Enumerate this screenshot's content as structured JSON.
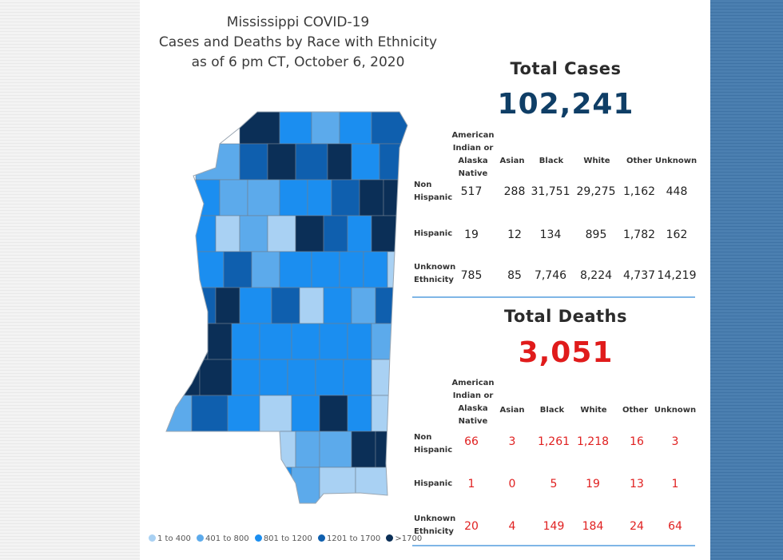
{
  "title": {
    "line1": "Mississippi COVID-19",
    "line2": "Cases and Deaths by Race with Ethnicity",
    "line3": "as of 6 pm CT, October 6, 2020"
  },
  "colors": {
    "c1": "#a9d1f3",
    "c2": "#5caaeb",
    "c3": "#1b8ef0",
    "c4": "#0f5fae",
    "c5": "#0b2f57",
    "border": "#6f7f8f",
    "cases_number": "#0f3e66",
    "deaths_number": "#e01b1b"
  },
  "total_cases": {
    "heading": "Total Cases",
    "value": "102,241"
  },
  "total_deaths": {
    "heading": "Total Deaths",
    "value": "3,051"
  },
  "columns": {
    "american_indian": [
      "American",
      "Indian or",
      "Alaska Native"
    ],
    "others": [
      "Asian",
      "Black",
      "White",
      "Other",
      "Unknown"
    ]
  },
  "cases_rows": [
    {
      "label": [
        "Non",
        "Hispanic"
      ],
      "values": [
        "517",
        "288",
        "31,751",
        "29,275",
        "1,162",
        "448"
      ]
    },
    {
      "label": [
        "Hispanic"
      ],
      "values": [
        "19",
        "12",
        "134",
        "895",
        "1,782",
        "162"
      ]
    },
    {
      "label": [
        "Unknown",
        "Ethnicity"
      ],
      "values": [
        "785",
        "85",
        "7,746",
        "8,224",
        "4,737",
        "14,219"
      ]
    }
  ],
  "deaths_rows": [
    {
      "label": [
        "Non",
        "Hispanic"
      ],
      "values": [
        "66",
        "3",
        "1,261",
        "1,218",
        "16",
        "3"
      ]
    },
    {
      "label": [
        "Hispanic"
      ],
      "values": [
        "1",
        "0",
        "5",
        "19",
        "13",
        "1"
      ]
    },
    {
      "label": [
        "Unknown",
        "Ethnicity"
      ],
      "values": [
        "20",
        "4",
        "149",
        "184",
        "24",
        "64"
      ]
    }
  ],
  "legend": [
    {
      "label": "1 to 400",
      "color": "#a9d1f3"
    },
    {
      "label": "401 to 800",
      "color": "#5caaeb"
    },
    {
      "label": "801 to 1200",
      "color": "#1b8ef0"
    },
    {
      "label": "1201 to 1700",
      "color": "#0f5fae"
    },
    {
      "label": ">1700",
      "color": "#0b2f57"
    }
  ],
  "county_bins": [
    5,
    3,
    2,
    3,
    4,
    2,
    4,
    5,
    4,
    5,
    3,
    4,
    3,
    2,
    2,
    3,
    3,
    4,
    5,
    5,
    3,
    1,
    2,
    1,
    5,
    4,
    3,
    5,
    3,
    4,
    2,
    3,
    3,
    3,
    3,
    1,
    4,
    5,
    3,
    4,
    1,
    3,
    2,
    4,
    5,
    5,
    3,
    3,
    3,
    3,
    3,
    2,
    5,
    5,
    3,
    3,
    3,
    3,
    3,
    1,
    2,
    4,
    3,
    1,
    3,
    5,
    3,
    1,
    1,
    2,
    2,
    5,
    5,
    3,
    2,
    1,
    1,
    1,
    1,
    4,
    4,
    3,
    3,
    2,
    5,
    5,
    3
  ]
}
